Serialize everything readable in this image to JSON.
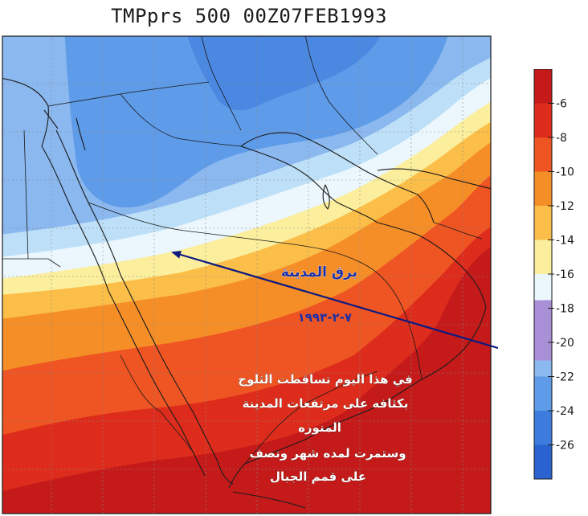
{
  "title": "TMPprs 500 00Z07FEB1993",
  "colorbar": {
    "ticks": [
      "-6",
      "-8",
      "-10",
      "-12",
      "-14",
      "-16",
      "-18",
      "-20",
      "-22",
      "-24",
      "-26"
    ],
    "colors": [
      "#c41a1a",
      "#dd2c1c",
      "#ee5522",
      "#f68e28",
      "#fbbe48",
      "#fbee9c",
      "#ebf7fd",
      "#bde0f8",
      "#8ab8ef",
      "#5e9be8",
      "#3d7cde",
      "#2a63cf"
    ],
    "highlight_color": "#a98fd6"
  },
  "annotations": {
    "city_name": "برق المدينة",
    "date": "٧-٢-١٩٩٣",
    "description_lines": [
      "في هذا اليوم تساقطت الثلوج",
      "بكثافه على مرتفعات المدينة",
      "المنوره",
      "وستمرت لمده شهر ونصف",
      "على قمم الجبال"
    ]
  },
  "colors": {
    "annotation_blue": "#1c2fa6",
    "arrow": "#0d1a80",
    "description_text": "#ffffff"
  }
}
